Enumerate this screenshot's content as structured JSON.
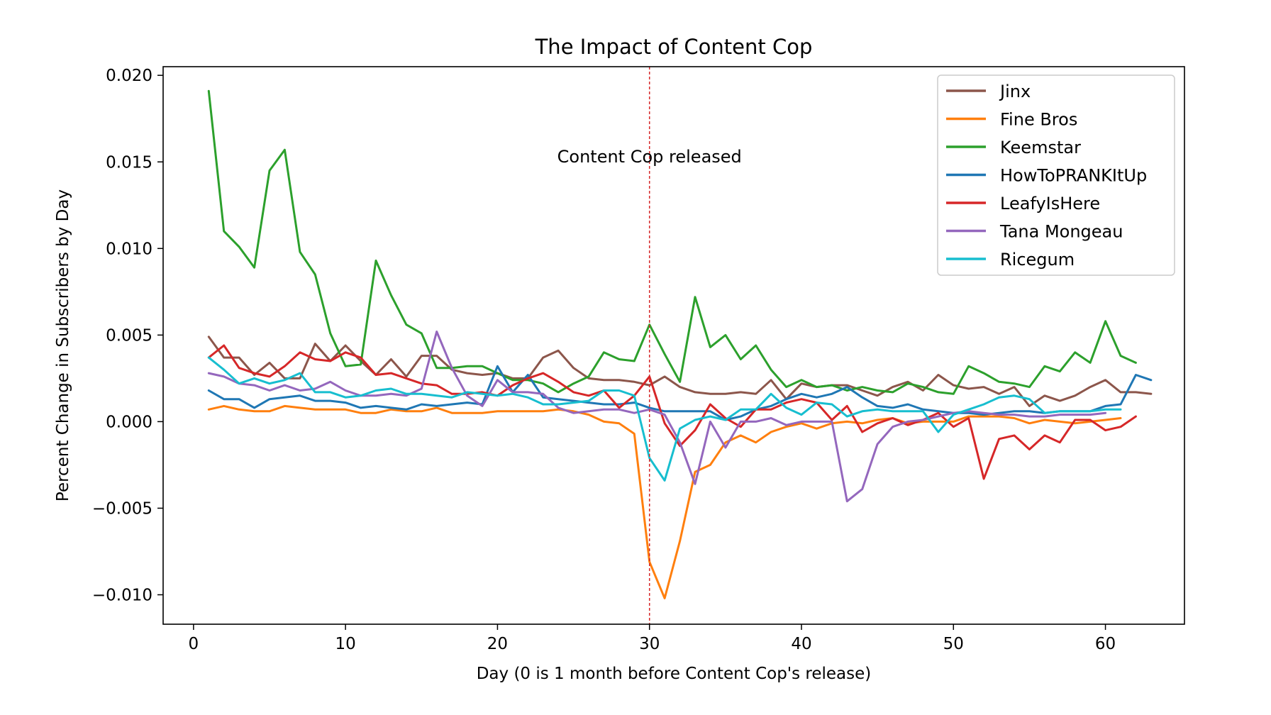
{
  "chart_data": {
    "type": "line",
    "title": "The Impact of Content Cop",
    "xlabel": "Day (0 is 1 month before Content Cop's release)",
    "ylabel": "Percent Change in Subscribers by Day",
    "xlim": [
      -2,
      65.2
    ],
    "ylim": [
      -0.0117,
      0.0205
    ],
    "xticks": [
      0,
      10,
      20,
      30,
      40,
      50,
      60
    ],
    "yticks": [
      -0.01,
      -0.005,
      0.0,
      0.005,
      0.01,
      0.015,
      0.02
    ],
    "xtick_labels": [
      "0",
      "10",
      "20",
      "30",
      "40",
      "50",
      "60"
    ],
    "ytick_labels": [
      "−0.010",
      "−0.005",
      "0.000",
      "0.005",
      "0.010",
      "0.015",
      "0.020"
    ],
    "grid": false,
    "legend_position": "top-right",
    "annotation": {
      "text": "Content Cop released",
      "x": 30,
      "y": 0.0153
    },
    "vline": {
      "x": 30,
      "color": "#d62728",
      "style": "dashed"
    },
    "series": [
      {
        "name": "Jinx",
        "color": "#8c564b",
        "x_start": 1,
        "values": [
          0.0049,
          0.0037,
          0.0037,
          0.0027,
          0.0034,
          0.0025,
          0.0025,
          0.0045,
          0.0035,
          0.0044,
          0.0035,
          0.0027,
          0.0036,
          0.0026,
          0.0038,
          0.0038,
          0.003,
          0.0028,
          0.0027,
          0.0028,
          0.0025,
          0.0025,
          0.0037,
          0.0041,
          0.0031,
          0.0025,
          0.0024,
          0.0024,
          0.0023,
          0.0021,
          0.0026,
          0.002,
          0.0017,
          0.0016,
          0.0016,
          0.0017,
          0.0016,
          0.0024,
          0.0013,
          0.0022,
          0.002,
          0.0021,
          0.0021,
          0.0018,
          0.0015,
          0.002,
          0.0023,
          0.0018,
          0.0027,
          0.0021,
          0.0019,
          0.002,
          0.0016,
          0.002,
          0.0009,
          0.0015,
          0.0012,
          0.0015,
          0.002,
          0.0024,
          0.0017,
          0.0017,
          0.0016
        ]
      },
      {
        "name": "Fine Bros",
        "color": "#ff7f0e",
        "x_start": 1,
        "values": [
          0.0007,
          0.0009,
          0.0007,
          0.0006,
          0.0006,
          0.0009,
          0.0008,
          0.0007,
          0.0007,
          0.0007,
          0.0005,
          0.0005,
          0.0007,
          0.0006,
          0.0006,
          0.0008,
          0.0005,
          0.0005,
          0.0005,
          0.0006,
          0.0006,
          0.0006,
          0.0006,
          0.0007,
          0.0006,
          0.0004,
          0.0,
          -0.0001,
          -0.0007,
          -0.0081,
          -0.0102,
          -0.0069,
          -0.0029,
          -0.0025,
          -0.0012,
          -0.0008,
          -0.0012,
          -0.0006,
          -0.0003,
          -0.0001,
          -0.0004,
          -0.0001,
          0.0,
          -0.0001,
          0.0001,
          0.0002,
          -0.0001,
          0.0,
          0.0,
          0.0,
          0.0003,
          0.0003,
          0.0003,
          0.0002,
          -0.0001,
          0.0001,
          0.0,
          -0.0001,
          0.0,
          0.0001,
          0.0002
        ]
      },
      {
        "name": "Keemstar",
        "color": "#2ca02c",
        "x_start": 1,
        "values": [
          0.0191,
          0.011,
          0.0101,
          0.0089,
          0.0145,
          0.0157,
          0.0098,
          0.0085,
          0.0051,
          0.0032,
          0.0033,
          0.0093,
          0.0073,
          0.0056,
          0.0051,
          0.0031,
          0.0031,
          0.0032,
          0.0032,
          0.0028,
          0.0024,
          0.0024,
          0.0022,
          0.0017,
          0.0022,
          0.0026,
          0.004,
          0.0036,
          0.0035,
          0.0056,
          0.0039,
          0.0023,
          0.0072,
          0.0043,
          0.005,
          0.0036,
          0.0044,
          0.003,
          0.002,
          0.0024,
          0.002,
          0.0021,
          0.0018,
          0.002,
          0.0018,
          0.0017,
          0.0022,
          0.002,
          0.0017,
          0.0016,
          0.0032,
          0.0028,
          0.0023,
          0.0022,
          0.002,
          0.0032,
          0.0029,
          0.004,
          0.0034,
          0.0058,
          0.0038,
          0.0034
        ]
      },
      {
        "name": "HowToPRANKItUp",
        "color": "#1f77b4",
        "x_start": 1,
        "values": [
          0.0018,
          0.0013,
          0.0013,
          0.0008,
          0.0013,
          0.0014,
          0.0015,
          0.0012,
          0.0012,
          0.0011,
          0.0008,
          0.0009,
          0.0008,
          0.0007,
          0.001,
          0.0009,
          0.001,
          0.0011,
          0.001,
          0.0032,
          0.0017,
          0.0027,
          0.0014,
          0.0013,
          0.0012,
          0.0011,
          0.001,
          0.001,
          0.0011,
          0.0008,
          0.0006,
          0.0006,
          0.0006,
          0.0006,
          0.0001,
          0.0003,
          0.0007,
          0.0009,
          0.0013,
          0.0016,
          0.0014,
          0.0016,
          0.002,
          0.0014,
          0.0009,
          0.0008,
          0.001,
          0.0007,
          0.0006,
          0.0005,
          0.0005,
          0.0004,
          0.0005,
          0.0006,
          0.0006,
          0.0005,
          0.0006,
          0.0006,
          0.0006,
          0.0009,
          0.001,
          0.0027,
          0.0024
        ]
      },
      {
        "name": "LeafyIsHere",
        "color": "#d62728",
        "x_start": 1,
        "values": [
          0.0037,
          0.0044,
          0.0031,
          0.0028,
          0.0026,
          0.0032,
          0.004,
          0.0036,
          0.0035,
          0.004,
          0.0037,
          0.0027,
          0.0028,
          0.0025,
          0.0022,
          0.0021,
          0.0016,
          0.0016,
          0.0017,
          0.0015,
          0.0021,
          0.0025,
          0.0028,
          0.0023,
          0.0017,
          0.0015,
          0.0018,
          0.0008,
          0.0015,
          0.0026,
          -0.0001,
          -0.0014,
          -0.0005,
          0.001,
          0.0002,
          -0.0003,
          0.0007,
          0.0007,
          0.0011,
          0.0013,
          0.0011,
          0.0001,
          0.0009,
          -0.0006,
          -0.0001,
          0.0002,
          -0.0002,
          0.0001,
          0.0005,
          -0.0003,
          0.0002,
          -0.0033,
          -0.001,
          -0.0008,
          -0.0016,
          -0.0008,
          -0.0012,
          0.0001,
          0.0001,
          -0.0005,
          -0.0003,
          0.0003
        ]
      },
      {
        "name": "Tana Mongeau",
        "color": "#9467bd",
        "x_start": 1,
        "values": [
          0.0028,
          0.0026,
          0.0022,
          0.0021,
          0.0018,
          0.0021,
          0.0018,
          0.0019,
          0.0023,
          0.0018,
          0.0015,
          0.0015,
          0.0016,
          0.0015,
          0.0019,
          0.0052,
          0.0031,
          0.0015,
          0.0009,
          0.0024,
          0.0017,
          0.0017,
          0.0016,
          0.0008,
          0.0005,
          0.0006,
          0.0007,
          0.0007,
          0.0005,
          0.0007,
          0.0004,
          -0.0012,
          -0.0036,
          0.0,
          -0.0015,
          0.0,
          0.0,
          0.0002,
          -0.0002,
          0.0,
          0.0,
          0.0,
          -0.0046,
          -0.0039,
          -0.0013,
          -0.0003,
          0.0,
          0.0001,
          0.0003,
          0.0005,
          0.0006,
          0.0005,
          0.0004,
          0.0004,
          0.0003,
          0.0003,
          0.0004,
          0.0004,
          0.0004,
          0.0005
        ]
      },
      {
        "name": "Ricegum",
        "color": "#17becf",
        "x_start": 1,
        "values": [
          0.0037,
          0.003,
          0.0022,
          0.0025,
          0.0022,
          0.0024,
          0.0028,
          0.0017,
          0.0017,
          0.0014,
          0.0015,
          0.0018,
          0.0019,
          0.0016,
          0.0016,
          0.0015,
          0.0014,
          0.0017,
          0.0016,
          0.0015,
          0.0016,
          0.0014,
          0.001,
          0.001,
          0.0011,
          0.0012,
          0.0018,
          0.0018,
          0.0015,
          -0.0021,
          -0.0034,
          -0.0004,
          0.0001,
          0.0003,
          0.0001,
          0.0007,
          0.0007,
          0.0016,
          0.0008,
          0.0004,
          0.0011,
          0.001,
          0.0003,
          0.0006,
          0.0007,
          0.0006,
          0.0006,
          0.0006,
          -0.0006,
          0.0004,
          0.0007,
          0.001,
          0.0014,
          0.0015,
          0.0013,
          0.0005,
          0.0006,
          0.0006,
          0.0006,
          0.0007,
          0.0007
        ]
      }
    ]
  }
}
